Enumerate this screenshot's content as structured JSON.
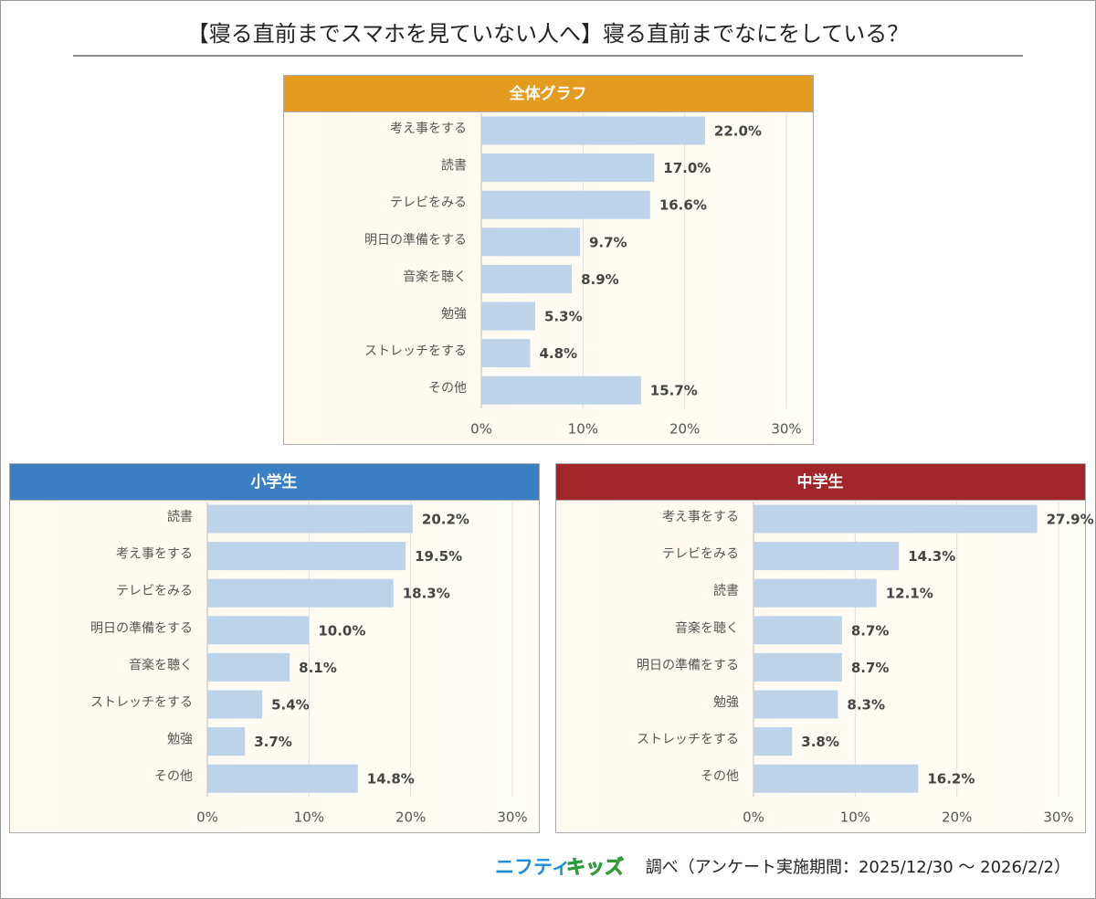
{
  "title": "【寝る直前までスマホを見ていない人へ】寝る直前までなにをしている？",
  "footer": {
    "logo_part1": "ニフティ",
    "logo_part2": "キッズ",
    "note": "調べ（アンケート実施期間：2025/12/30 〜 2026/2/2）"
  },
  "chart_data": [
    {
      "type": "hbar",
      "title": "全体グラフ",
      "header_color": "#e39c1f",
      "color": "#bcd3ea",
      "categories": [
        "考え事をする",
        "読書",
        "テレビをみる",
        "明日の準備をする",
        "音楽を聴く",
        "勉強",
        "ストレッチをする",
        "その他"
      ],
      "values": [
        22.0,
        17.0,
        16.6,
        9.7,
        8.9,
        5.3,
        4.8,
        15.7
      ],
      "value_labels": [
        "22.0%",
        "17.0%",
        "16.6%",
        "9.7%",
        "8.9%",
        "5.3%",
        "4.8%",
        "15.7%"
      ],
      "xlim": [
        0,
        30
      ],
      "xticks": [
        {
          "value": 0,
          "label": "0%"
        },
        {
          "value": 10,
          "label": "10%"
        },
        {
          "value": 20,
          "label": "20%"
        },
        {
          "value": 30,
          "label": "30%"
        }
      ],
      "grid": true
    },
    {
      "type": "hbar",
      "title": "小学生",
      "header_color": "#3a7fc4",
      "color": "#bcd3ea",
      "categories": [
        "読書",
        "考え事をする",
        "テレビをみる",
        "明日の準備をする",
        "音楽を聴く",
        "ストレッチをする",
        "勉強",
        "その他"
      ],
      "values": [
        20.2,
        19.5,
        18.3,
        10.0,
        8.1,
        5.4,
        3.7,
        14.8
      ],
      "value_labels": [
        "20.2%",
        "19.5%",
        "18.3%",
        "10.0%",
        "8.1%",
        "5.4%",
        "3.7%",
        "14.8%"
      ],
      "xlim": [
        0,
        30
      ],
      "xticks": [
        {
          "value": 0,
          "label": "0%"
        },
        {
          "value": 10,
          "label": "10%"
        },
        {
          "value": 20,
          "label": "20%"
        },
        {
          "value": 30,
          "label": "30%"
        }
      ],
      "grid": true
    },
    {
      "type": "hbar",
      "title": "中学生",
      "header_color": "#a1262a",
      "color": "#bcd3ea",
      "categories": [
        "考え事をする",
        "テレビをみる",
        "読書",
        "音楽を聴く",
        "明日の準備をする",
        "勉強",
        "ストレッチをする",
        "その他"
      ],
      "values": [
        27.9,
        14.3,
        12.1,
        8.7,
        8.7,
        8.3,
        3.8,
        16.2
      ],
      "value_labels": [
        "27.9%",
        "14.3%",
        "12.1%",
        "8.7%",
        "8.7%",
        "8.3%",
        "3.8%",
        "16.2%"
      ],
      "xlim": [
        0,
        30
      ],
      "xticks": [
        {
          "value": 0,
          "label": "0%"
        },
        {
          "value": 10,
          "label": "10%"
        },
        {
          "value": 20,
          "label": "20%"
        },
        {
          "value": 30,
          "label": "30%"
        }
      ],
      "grid": true
    }
  ]
}
